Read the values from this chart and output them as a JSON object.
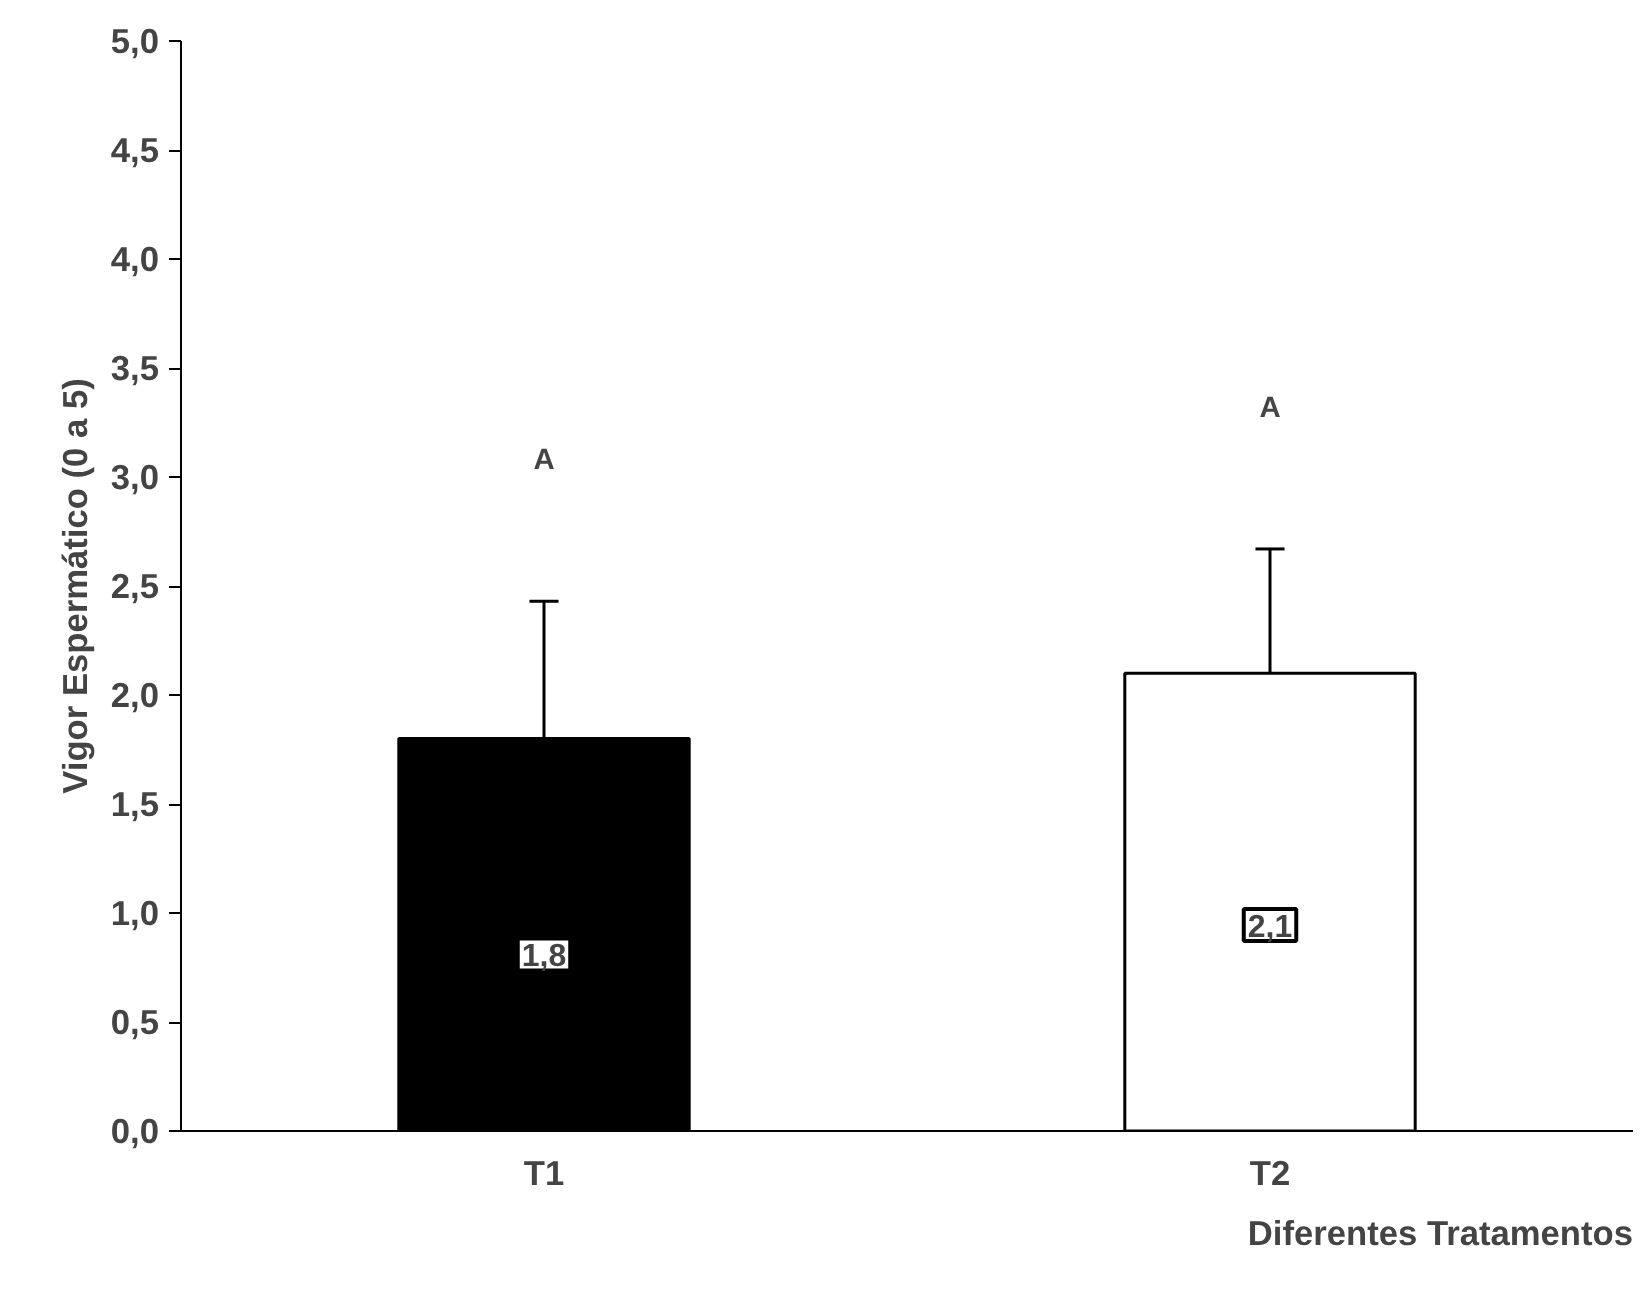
{
  "chart_data": {
    "type": "bar",
    "xlabel": "Diferentes Tratamentos",
    "ylabel": "Vigor Espermático (0 a 5)",
    "categories": [
      "T1",
      "T2"
    ],
    "values": [
      1.8,
      2.1
    ],
    "colors": [
      "#000000",
      "#ffffff"
    ],
    "value_labels": [
      "1,8",
      "2,1"
    ],
    "errors": [
      [
        1.8,
        2.43
      ],
      [
        2.1,
        2.67
      ]
    ],
    "annotations": [
      "A",
      "A"
    ],
    "ylim": [
      0,
      5
    ],
    "yticks": [
      {
        "value": 0,
        "label": "0,0"
      },
      {
        "value": 0.5,
        "label": "0,5"
      },
      {
        "value": 1,
        "label": "1,0"
      },
      {
        "value": 1.5,
        "label": "1,5"
      },
      {
        "value": 2,
        "label": "2,0"
      },
      {
        "value": 2.5,
        "label": "2,5"
      },
      {
        "value": 3,
        "label": "3,0"
      },
      {
        "value": 3.5,
        "label": "3,5"
      },
      {
        "value": 4,
        "label": "4,0"
      },
      {
        "value": 4.5,
        "label": "4,5"
      },
      {
        "value": 5,
        "label": "5,0"
      }
    ],
    "grid": false
  }
}
